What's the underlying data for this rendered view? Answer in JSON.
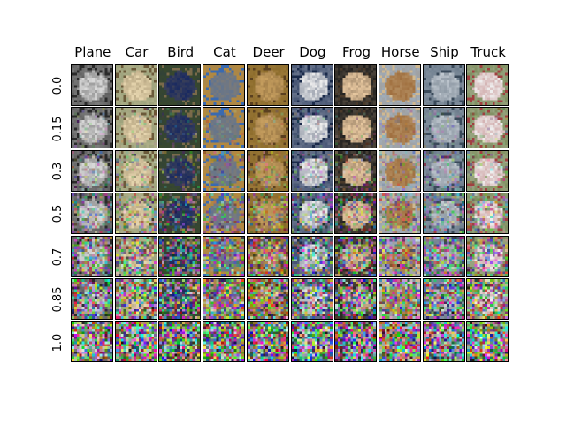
{
  "columns": [
    "Plane",
    "Car",
    "Bird",
    "Cat",
    "Deer",
    "Dog",
    "Frog",
    "Horse",
    "Ship",
    "Truck"
  ],
  "rows": [
    "0.0",
    "0.15",
    "0.3",
    "0.5",
    "0.7",
    "0.85",
    "1.0"
  ],
  "noise_levels": [
    0.0,
    0.15,
    0.3,
    0.5,
    0.7,
    0.85,
    1.0
  ],
  "class_palettes": {
    "Plane": {
      "bg": "#5a5a5a",
      "fg": "#dcdcdc",
      "accent": "#2a2a2a"
    },
    "Car": {
      "bg": "#9aa07a",
      "fg": "#e8d7b0",
      "accent": "#6b5a3a"
    },
    "Bird": {
      "bg": "#3a4a2a",
      "fg": "#1a2a60",
      "accent": "#7a6a4a"
    },
    "Cat": {
      "bg": "#b88a3a",
      "fg": "#7a7a7a",
      "accent": "#3a6ab0"
    },
    "Deer": {
      "bg": "#8a6a2a",
      "fg": "#c8a060",
      "accent": "#5a4020"
    },
    "Dog": {
      "bg": "#3a4a6a",
      "fg": "#eeeeee",
      "accent": "#1a2a4a"
    },
    "Frog": {
      "bg": "#1a1a1a",
      "fg": "#e8c8a0",
      "accent": "#4a3a2a"
    },
    "Horse": {
      "bg": "#a0b0c0",
      "fg": "#a07040",
      "accent": "#d0b890"
    },
    "Ship": {
      "bg": "#6a7a8a",
      "fg": "#c0c8d0",
      "accent": "#3a4a5a"
    },
    "Truck": {
      "bg": "#7a8a5a",
      "fg": "#f0f0f0",
      "accent": "#a04040"
    }
  }
}
